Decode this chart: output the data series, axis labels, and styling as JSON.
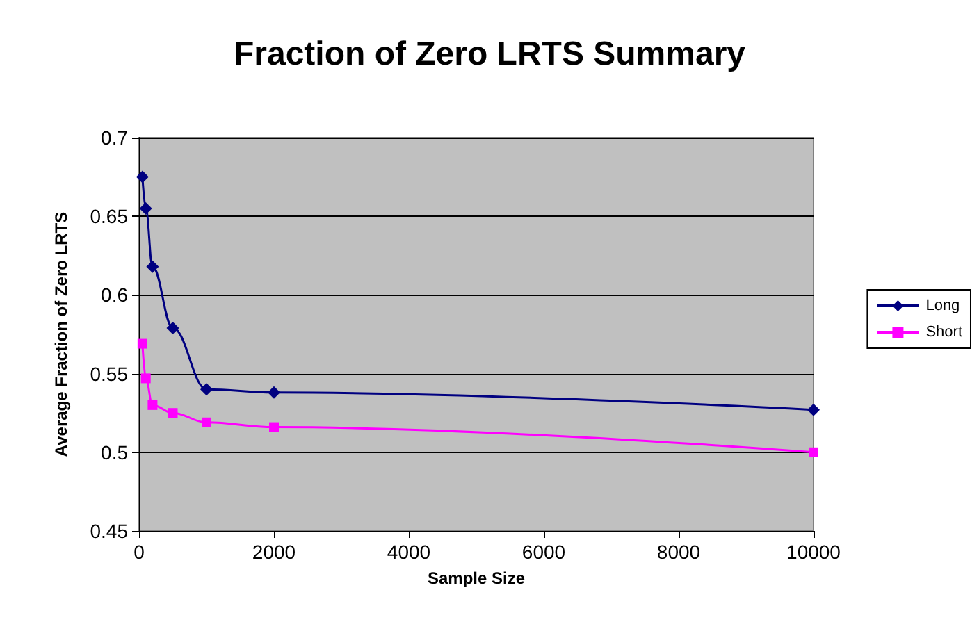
{
  "chart_data": {
    "type": "line",
    "title": "Fraction of Zero LRTS Summary",
    "xlabel": "Sample Size",
    "ylabel": "Average Fraction of Zero LRTS",
    "x": [
      50,
      100,
      200,
      500,
      1000,
      2000,
      10000
    ],
    "series": [
      {
        "name": "Long",
        "color": "#000080",
        "marker": "diamond",
        "values": [
          0.675,
          0.655,
          0.618,
          0.579,
          0.54,
          0.538,
          0.527
        ]
      },
      {
        "name": "Short",
        "color": "#ff00ff",
        "marker": "square",
        "values": [
          0.569,
          0.547,
          0.53,
          0.525,
          0.519,
          0.516,
          0.5
        ]
      }
    ],
    "xlim": [
      0,
      10000
    ],
    "xticks": [
      0,
      2000,
      4000,
      6000,
      8000,
      10000
    ],
    "ylim": [
      0.45,
      0.7
    ],
    "yticks": [
      0.45,
      0.5,
      0.55,
      0.6,
      0.65,
      0.7
    ],
    "grid": "y",
    "legend": "right"
  }
}
